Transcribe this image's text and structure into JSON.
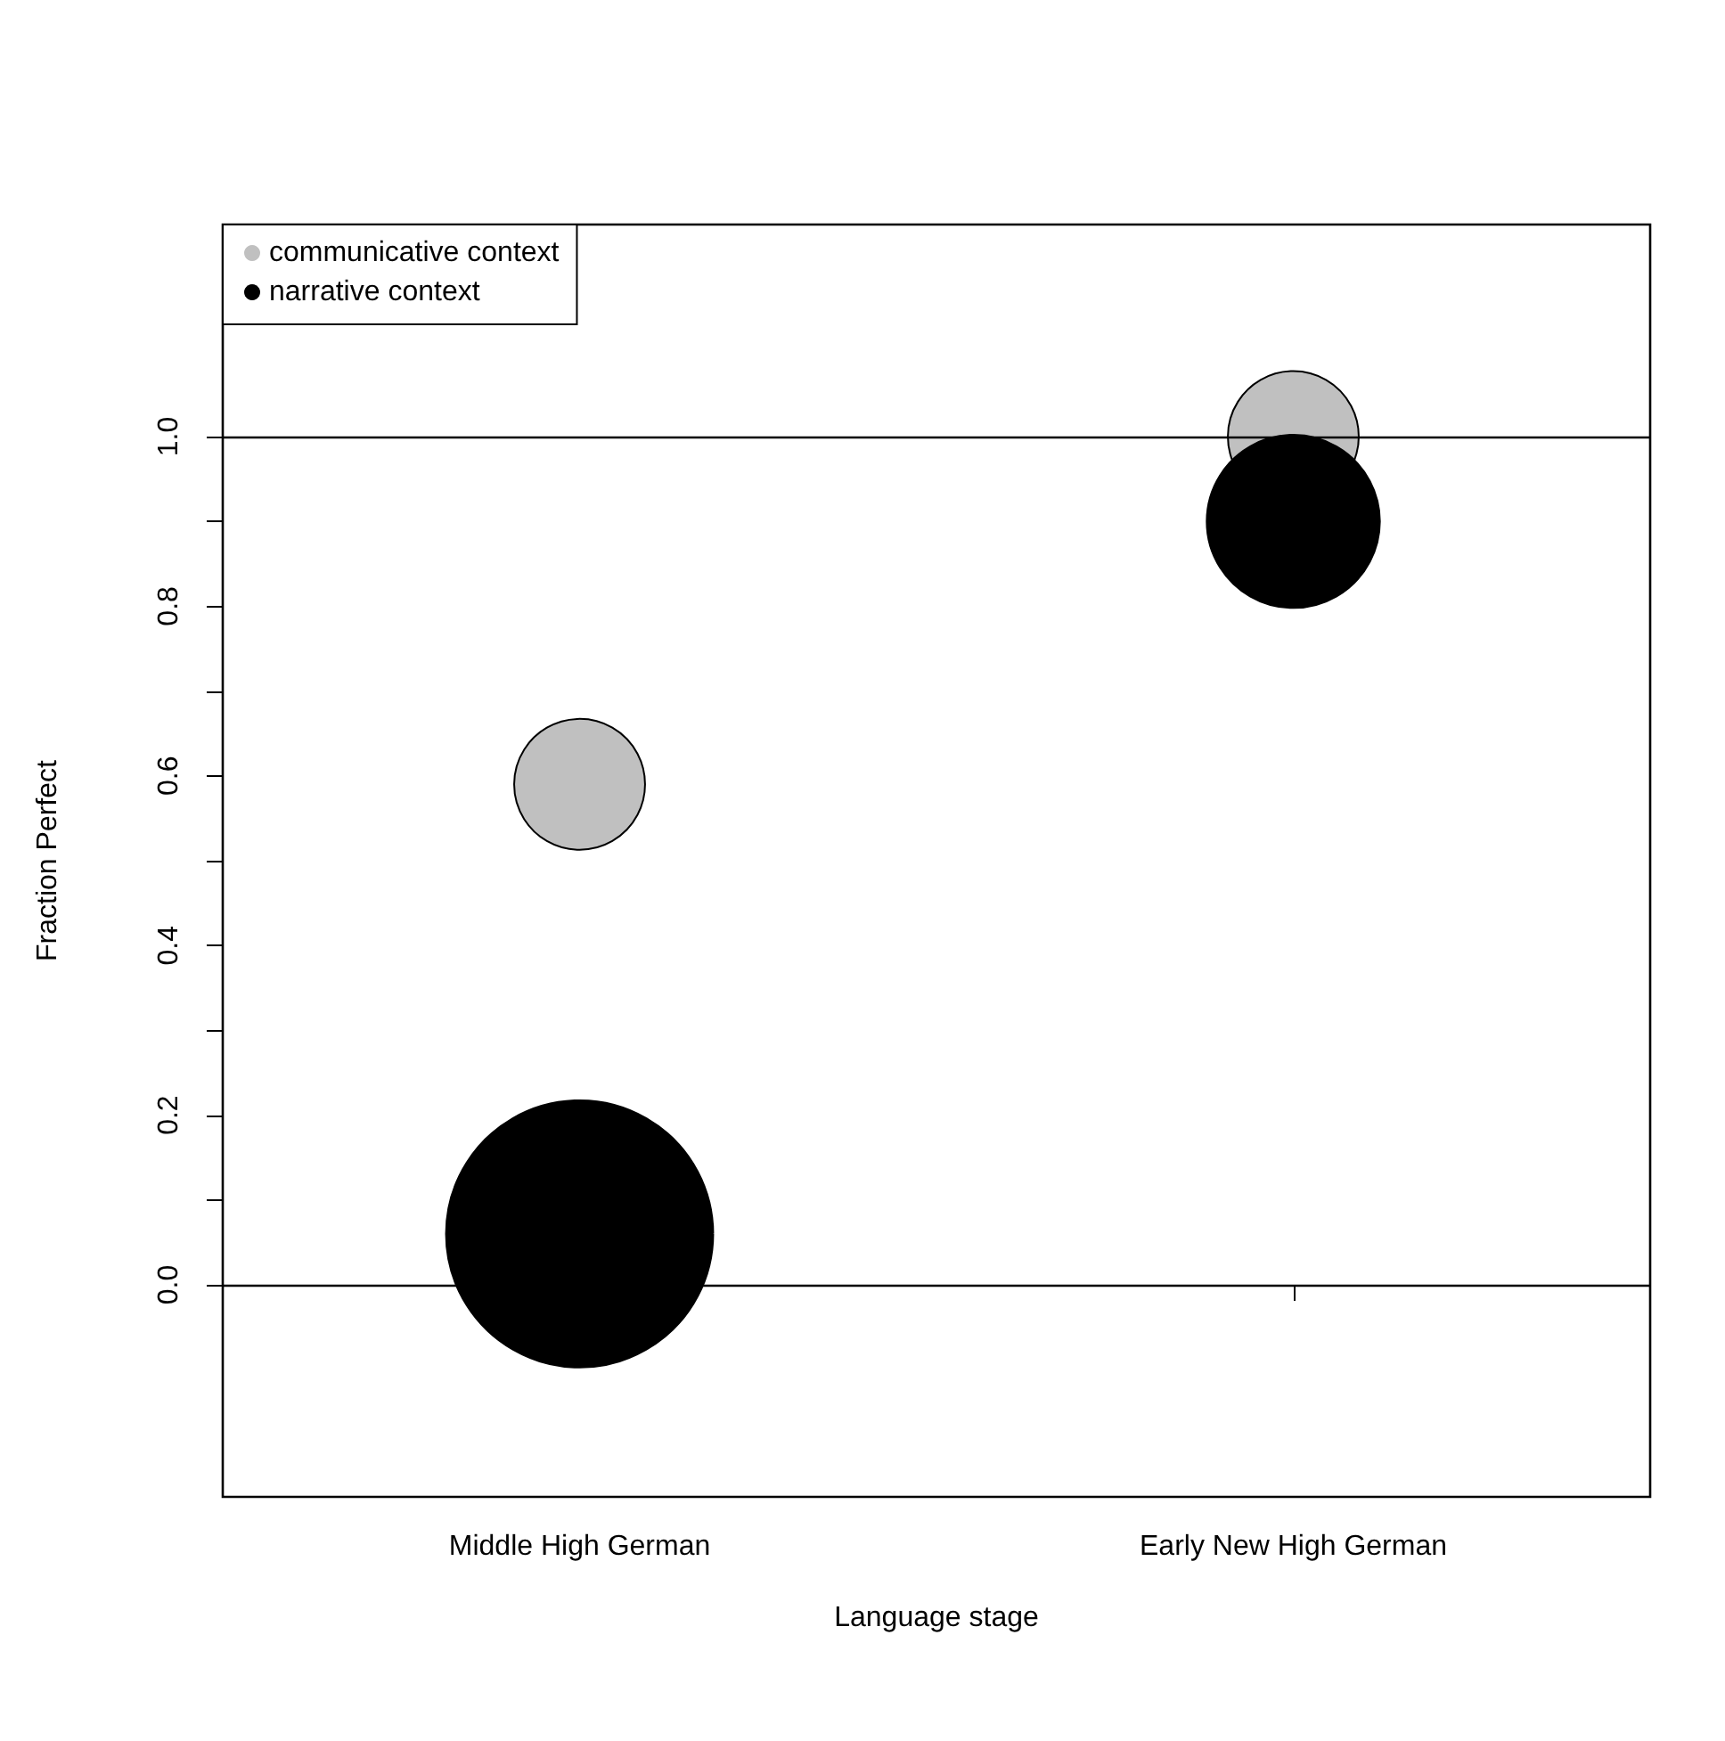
{
  "chart_data": {
    "type": "bubble",
    "xlabel": "Language stage",
    "ylabel": "Fraction Perfect",
    "categories": [
      "Middle High German",
      "Early New High German"
    ],
    "series": [
      {
        "name": "communicative context",
        "color": "#c0c0c0",
        "values": [
          0.59,
          1.0
        ],
        "sizes": [
          0.24,
          0.24
        ]
      },
      {
        "name": "narrative context",
        "color": "#000000",
        "values": [
          0.06,
          0.9
        ],
        "sizes": [
          1,
          0.42
        ]
      }
    ],
    "ylim": [
      -0.25,
      1.25
    ],
    "yticks": [
      {
        "value": 0,
        "label": "0.0"
      },
      {
        "value": 0.1,
        "label": null
      },
      {
        "value": 0.2,
        "label": "0.2"
      },
      {
        "value": 0.3,
        "label": null
      },
      {
        "value": 0.4,
        "label": "0.4"
      },
      {
        "value": 0.5,
        "label": null
      },
      {
        "value": 0.6,
        "label": "0.6"
      },
      {
        "value": 0.7,
        "label": null
      },
      {
        "value": 0.8,
        "label": "0.8"
      },
      {
        "value": 0.9,
        "label": null
      },
      {
        "value": 1,
        "label": "1.0"
      }
    ],
    "ref_lines": [
      {
        "axis": "y",
        "value": 0,
        "color": "#000000"
      },
      {
        "axis": "y",
        "value": 1,
        "color": "#000000"
      }
    ],
    "legend": "top left",
    "grid": false
  }
}
